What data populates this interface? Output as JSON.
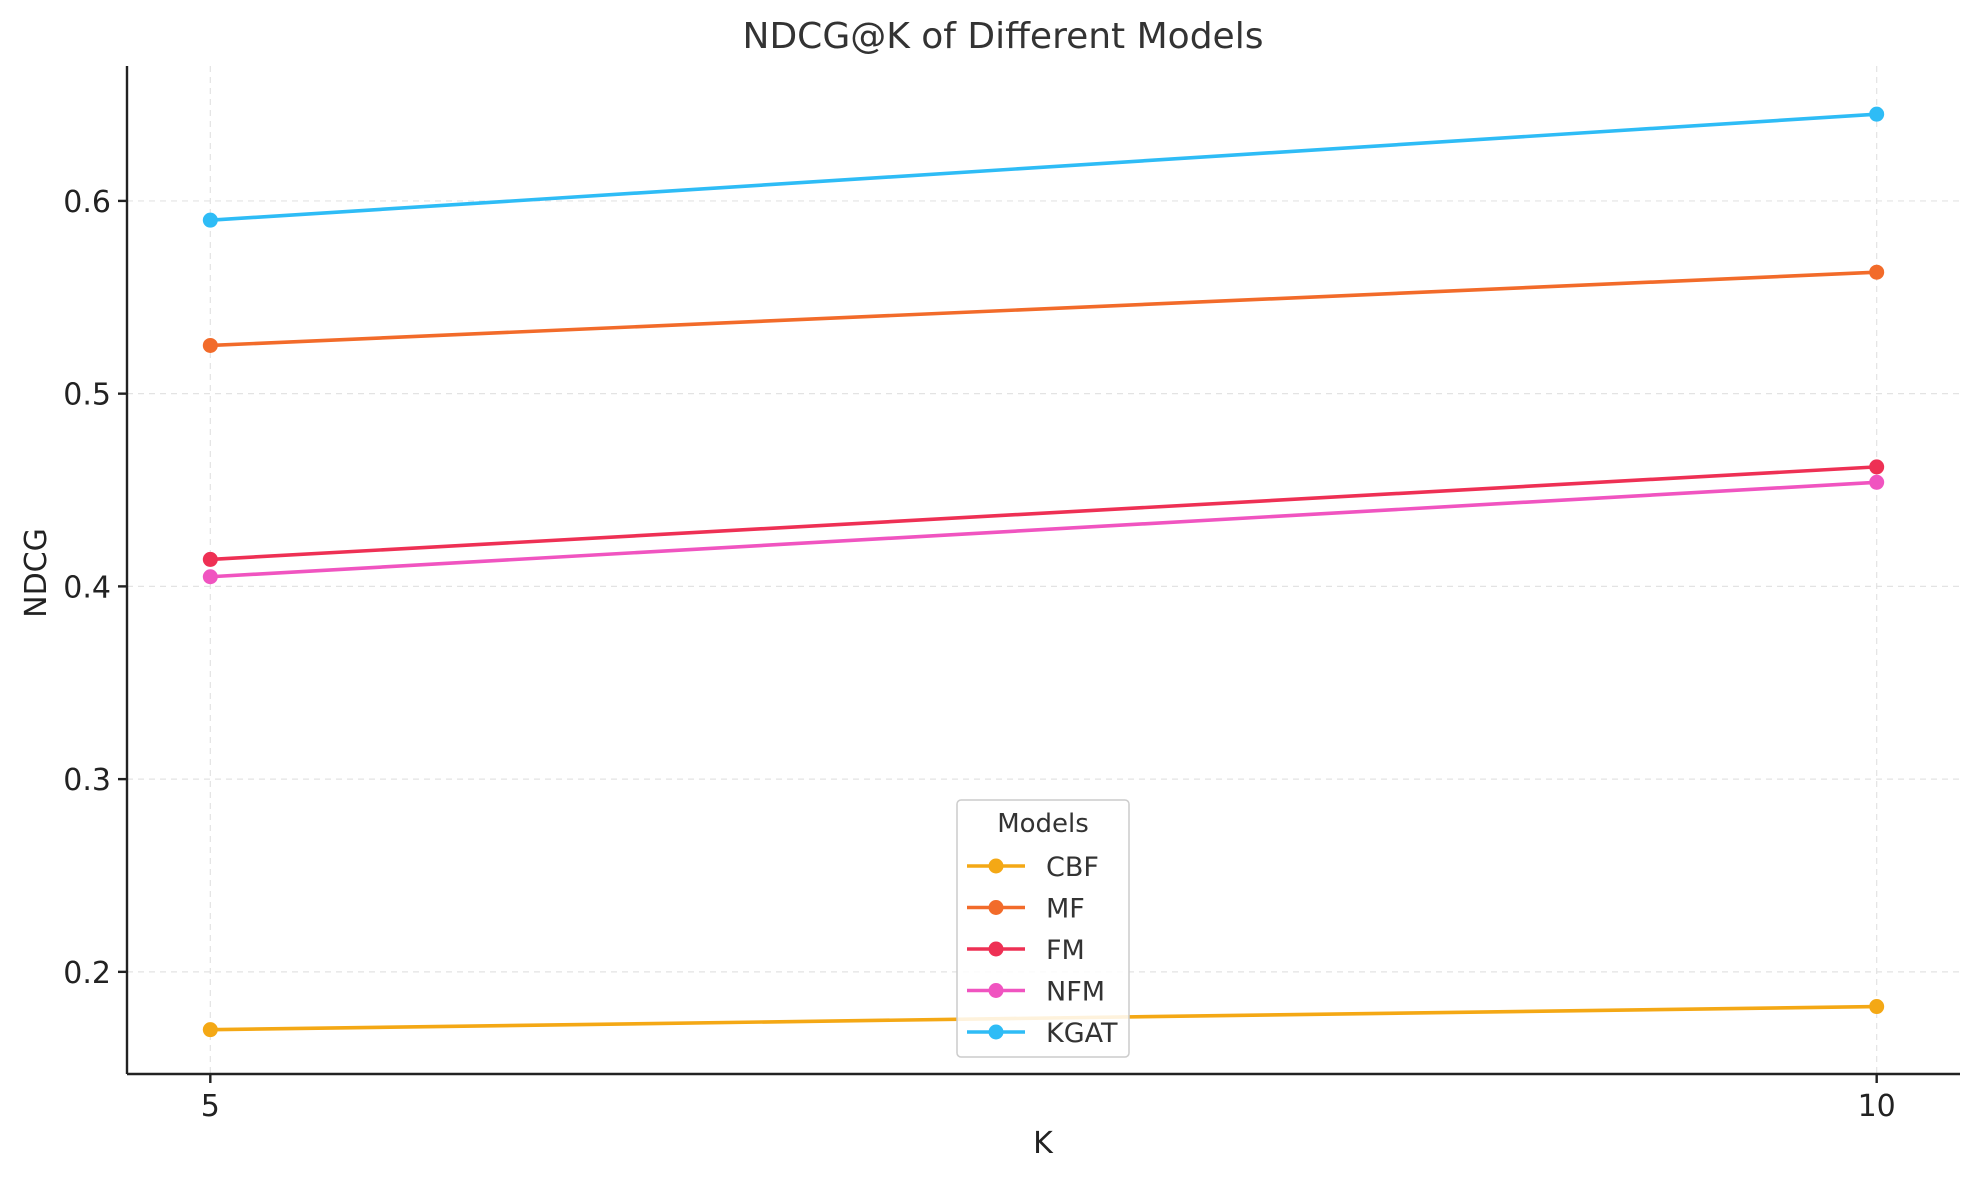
{
  "chart_data": {
    "type": "line",
    "title": "NDCG@K of Different Models",
    "xlabel": "K",
    "ylabel": "NDCG",
    "x": [
      5,
      10
    ],
    "x_tick_labels": [
      "5",
      "10"
    ],
    "y_ticks": [
      0.2,
      0.3,
      0.4,
      0.5,
      0.6
    ],
    "y_tick_labels": [
      "0.2",
      "0.3",
      "0.4",
      "0.5",
      "0.6"
    ],
    "xlim": [
      4.75,
      10.25
    ],
    "ylim": [
      0.147,
      0.67
    ],
    "grid": true,
    "legend": {
      "title": "Models",
      "position": "lower-center"
    },
    "series": [
      {
        "name": "CBF",
        "color": "#f4a815",
        "values": [
          0.17,
          0.182
        ]
      },
      {
        "name": "MF",
        "color": "#f26b2a",
        "values": [
          0.525,
          0.563
        ]
      },
      {
        "name": "FM",
        "color": "#ee3054",
        "values": [
          0.414,
          0.462
        ]
      },
      {
        "name": "NFM",
        "color": "#f054c0",
        "values": [
          0.405,
          0.454
        ]
      },
      {
        "name": "KGAT",
        "color": "#2ebcf6",
        "values": [
          0.59,
          0.645
        ]
      }
    ]
  }
}
